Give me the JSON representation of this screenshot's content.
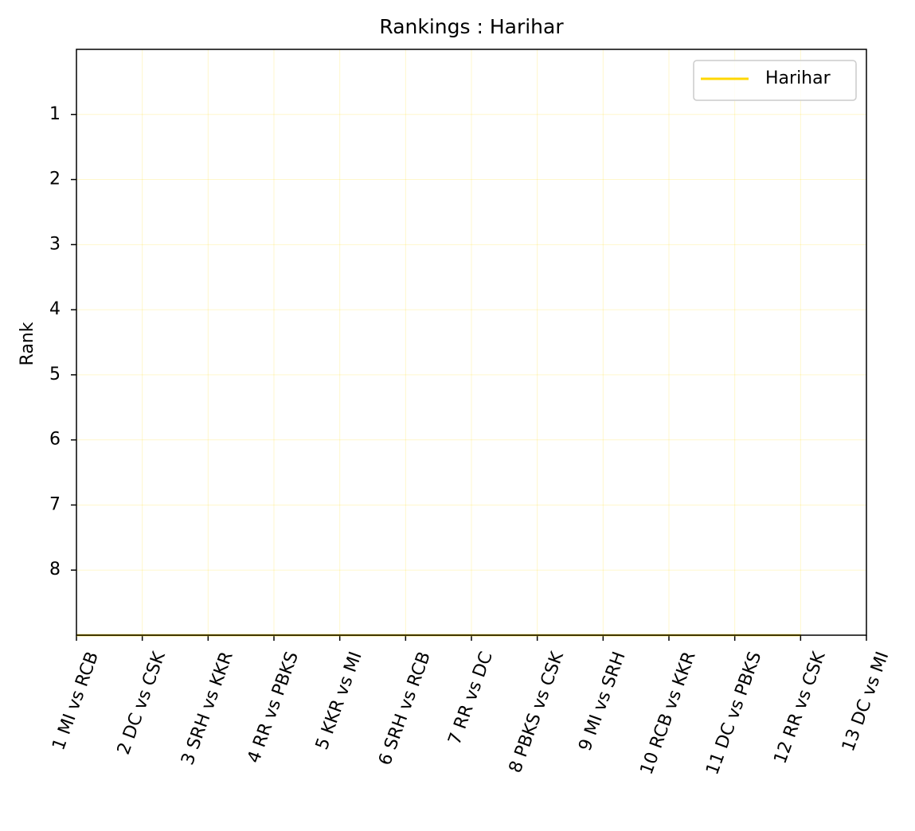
{
  "chart_data": {
    "type": "line",
    "title": "Rankings : Harihar",
    "ylabel": "Rank",
    "categories": [
      "1 MI vs RCB",
      "2 DC vs CSK",
      "3 SRH vs KKR",
      "4 RR vs PBKS",
      "5 KKR vs MI",
      "6 SRH vs RCB",
      "7 RR vs DC",
      "8 PBKS vs CSK",
      "9 MI vs SRH",
      "10 RCB vs KKR",
      "11 DC vs PBKS",
      "12 RR vs CSK",
      "13 DC vs MI"
    ],
    "series": [
      {
        "name": "Harihar",
        "color": "#ffd700",
        "values": [
          9,
          9,
          9,
          9,
          9,
          9,
          9,
          9,
          9,
          9,
          9,
          9,
          null
        ]
      }
    ],
    "ylim": [
      0,
      9
    ],
    "y_inverted": true,
    "yticks": [
      1,
      2,
      3,
      4,
      5,
      6,
      7,
      8
    ],
    "grid": true,
    "legend": "upper right"
  }
}
